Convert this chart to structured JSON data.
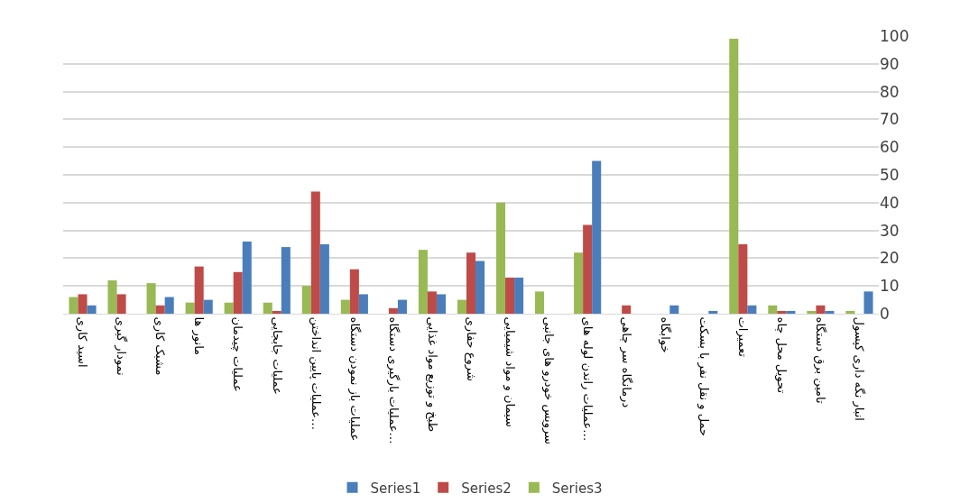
{
  "chart_data": {
    "type": "bar",
    "categories": [
      "اسید کاری",
      "نمودار گیری",
      "مشبک کاری",
      "مانور ها",
      "عملیات چیدمان",
      "عملیات جابجایی",
      "عملیات پایین انداختن…",
      "عملیات باز نمودن دستگاه",
      "عملیات بارگیری دستگاه…",
      "طبخ و توزیع مواد غذایی",
      "شروع حفاری",
      "سیمان و مواد شیمیایی",
      "سرویس خودرو های جانبی",
      "عملیات راندن لوله های…",
      "درمانگاه سر چاهی",
      "خوابگاه",
      "حمل و نقل نفر با بسکت",
      "تعمیرات",
      "تحویل محل چاه",
      "تامین برق دستگاه",
      "انبار نگه داری کپسول"
    ],
    "series": [
      {
        "name": "Series1",
        "color": "#4a7ebb",
        "values": [
          3,
          0,
          6,
          5,
          26,
          24,
          25,
          7,
          5,
          7,
          19,
          13,
          0,
          55,
          0,
          3,
          1,
          3,
          1,
          1,
          8
        ]
      },
      {
        "name": "Series2",
        "color": "#be4b48",
        "values": [
          7,
          7,
          3,
          17,
          15,
          1,
          44,
          16,
          2,
          8,
          22,
          13,
          0,
          32,
          3,
          0,
          0,
          25,
          1,
          3,
          0
        ]
      },
      {
        "name": "Series3",
        "color": "#98b954",
        "values": [
          6,
          12,
          11,
          4,
          4,
          4,
          10,
          5,
          0,
          23,
          5,
          40,
          8,
          22,
          0,
          0,
          0,
          99,
          3,
          1,
          1
        ]
      }
    ],
    "ylim": [
      0,
      100
    ],
    "yticks": [
      0,
      10,
      20,
      30,
      40,
      50,
      60,
      70,
      80,
      90,
      100
    ],
    "grid": "y",
    "legend": "bottom"
  }
}
